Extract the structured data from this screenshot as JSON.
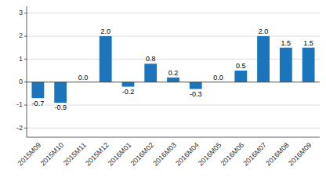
{
  "chart_data": {
    "type": "bar",
    "categories": [
      "2015M09",
      "2015M10",
      "2015M11",
      "2015M12",
      "2016M01",
      "2016M02",
      "2016M03",
      "2016M04",
      "2016M05",
      "2016M06",
      "2016M07",
      "2016M08",
      "2016M09"
    ],
    "values": [
      -0.7,
      -0.9,
      0.0,
      2.0,
      -0.2,
      0.8,
      0.2,
      -0.3,
      0.0,
      0.5,
      2.0,
      1.5,
      1.5
    ],
    "value_labels": [
      "-0.7",
      "-0.9",
      "0.0",
      "2.0",
      "-0.2",
      "0.8",
      "0.2",
      "-0.3",
      "0.0",
      "0.5",
      "2.0",
      "1.5",
      "1.5"
    ],
    "color": "#1b75bc",
    "ylim": [
      -2.4,
      3.3
    ],
    "yticks": [
      -2,
      -1,
      0,
      1,
      2,
      3
    ],
    "grid": true,
    "data_labels": true
  }
}
